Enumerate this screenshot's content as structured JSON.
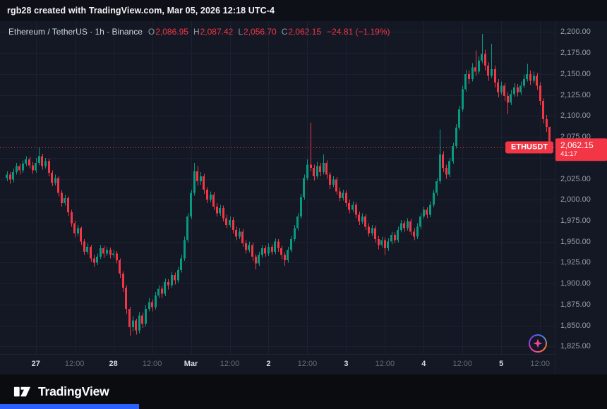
{
  "top_bar": {
    "text": "rgb28 created with TradingView.com, Mar 05, 2026 12:18 UTC-4"
  },
  "legend": {
    "symbol_title": "Ethereum / TetherUS · 1h · Binance",
    "ohlc": {
      "o_label": "O",
      "o": "2,086.95",
      "h_label": "H",
      "h": "2,087.42",
      "l_label": "L",
      "l": "2,056.70",
      "c_label": "C",
      "c": "2,062.15"
    },
    "change": "−24.81 (−1.19%)"
  },
  "price_line": {
    "symbol_tag": "ETHUSDT",
    "price_text": "2,062.15",
    "countdown": "41:17"
  },
  "price_axis": {
    "ticks": [
      {
        "p": 2200,
        "label": "2,200.00"
      },
      {
        "p": 2175,
        "label": "2,175.00"
      },
      {
        "p": 2150,
        "label": "2,150.00"
      },
      {
        "p": 2125,
        "label": "2,125.00"
      },
      {
        "p": 2100,
        "label": "2,100.00"
      },
      {
        "p": 2075,
        "label": "2,075.00"
      },
      {
        "p": 2050,
        "label": "2,050.00"
      },
      {
        "p": 2025,
        "label": "2,025.00"
      },
      {
        "p": 2000,
        "label": "2,000.00"
      },
      {
        "p": 1975,
        "label": "1,975.00"
      },
      {
        "p": 1950,
        "label": "1,950.00"
      },
      {
        "p": 1925,
        "label": "1,925.00"
      },
      {
        "p": 1900,
        "label": "1,900.00"
      },
      {
        "p": 1875,
        "label": "1,875.00"
      },
      {
        "p": 1850,
        "label": "1,850.00"
      },
      {
        "p": 1825,
        "label": "1,825.00"
      }
    ]
  },
  "footer": {
    "brand": "TradingView"
  },
  "colors": {
    "up": "#089981",
    "down": "#f23645",
    "grid": "#1c2130",
    "axis_text": "#9a9ea8",
    "accent_blue": "#2a62ff"
  },
  "chart_data": {
    "type": "candlestick",
    "title": "Ethereum / TetherUS · 1h · Binance",
    "symbol": "ETHUSDT",
    "timeframe": "1h",
    "exchange": "Binance",
    "last_price": 2062.15,
    "ylim": [
      1816,
      2213
    ],
    "up_color": "#089981",
    "down_color": "#f23645",
    "x_ticks": [
      {
        "i": 9,
        "label": "27",
        "major": true
      },
      {
        "i": 21,
        "label": "12:00",
        "major": false
      },
      {
        "i": 33,
        "label": "28",
        "major": true
      },
      {
        "i": 45,
        "label": "12:00",
        "major": false
      },
      {
        "i": 57,
        "label": "Mar",
        "major": true
      },
      {
        "i": 69,
        "label": "12:00",
        "major": false
      },
      {
        "i": 81,
        "label": "2",
        "major": true
      },
      {
        "i": 93,
        "label": "12:00",
        "major": false
      },
      {
        "i": 105,
        "label": "3",
        "major": true
      },
      {
        "i": 117,
        "label": "12:00",
        "major": false
      },
      {
        "i": 129,
        "label": "4",
        "major": true
      },
      {
        "i": 141,
        "label": "12:00",
        "major": false
      },
      {
        "i": 153,
        "label": "5",
        "major": true
      },
      {
        "i": 165,
        "label": "12:00",
        "major": false
      }
    ],
    "candles": [
      [
        2026,
        2034,
        2022,
        2030
      ],
      [
        2030,
        2033,
        2019,
        2024
      ],
      [
        2024,
        2037,
        2021,
        2033
      ],
      [
        2033,
        2044,
        2030,
        2040
      ],
      [
        2040,
        2043,
        2030,
        2035
      ],
      [
        2035,
        2047,
        2032,
        2043
      ],
      [
        2043,
        2052,
        2040,
        2048
      ],
      [
        2048,
        2051,
        2037,
        2041
      ],
      [
        2041,
        2045,
        2031,
        2035
      ],
      [
        2035,
        2050,
        2032,
        2044
      ],
      [
        2044,
        2062,
        2041,
        2052
      ],
      [
        2052,
        2055,
        2036,
        2040
      ],
      [
        2040,
        2050,
        2037,
        2046
      ],
      [
        2046,
        2049,
        2028,
        2032
      ],
      [
        2032,
        2035,
        2016,
        2020
      ],
      [
        2020,
        2030,
        2017,
        2026
      ],
      [
        2026,
        2028,
        2004,
        2008
      ],
      [
        2008,
        2011,
        1992,
        1996
      ],
      [
        1996,
        2006,
        1993,
        2002
      ],
      [
        2002,
        2004,
        1981,
        1985
      ],
      [
        1985,
        1988,
        1968,
        1972
      ],
      [
        1972,
        1975,
        1955,
        1960
      ],
      [
        1960,
        1970,
        1957,
        1966
      ],
      [
        1966,
        1968,
        1946,
        1950
      ],
      [
        1950,
        1953,
        1934,
        1938
      ],
      [
        1938,
        1948,
        1935,
        1944
      ],
      [
        1944,
        1946,
        1926,
        1930
      ],
      [
        1930,
        1934,
        1920,
        1925
      ],
      [
        1925,
        1936,
        1922,
        1932
      ],
      [
        1932,
        1946,
        1929,
        1942
      ],
      [
        1942,
        1945,
        1931,
        1936
      ],
      [
        1936,
        1944,
        1933,
        1940
      ],
      [
        1940,
        1943,
        1930,
        1934
      ],
      [
        1934,
        1940,
        1931,
        1936
      ],
      [
        1936,
        1939,
        1924,
        1928
      ],
      [
        1928,
        1930,
        1907,
        1912
      ],
      [
        1912,
        1915,
        1890,
        1895
      ],
      [
        1895,
        1898,
        1864,
        1870
      ],
      [
        1870,
        1872,
        1838,
        1848
      ],
      [
        1848,
        1861,
        1843,
        1856
      ],
      [
        1856,
        1858,
        1839,
        1844
      ],
      [
        1844,
        1866,
        1841,
        1862
      ],
      [
        1862,
        1865,
        1847,
        1852
      ],
      [
        1852,
        1874,
        1849,
        1870
      ],
      [
        1870,
        1883,
        1867,
        1878
      ],
      [
        1878,
        1881,
        1867,
        1872
      ],
      [
        1872,
        1890,
        1869,
        1886
      ],
      [
        1886,
        1898,
        1883,
        1894
      ],
      [
        1894,
        1897,
        1883,
        1888
      ],
      [
        1888,
        1906,
        1885,
        1902
      ],
      [
        1902,
        1905,
        1893,
        1898
      ],
      [
        1898,
        1914,
        1895,
        1910
      ],
      [
        1910,
        1913,
        1899,
        1904
      ],
      [
        1904,
        1920,
        1901,
        1916
      ],
      [
        1916,
        1934,
        1913,
        1930
      ],
      [
        1930,
        1956,
        1927,
        1952
      ],
      [
        1952,
        1984,
        1949,
        1980
      ],
      [
        1980,
        2012,
        1977,
        2008
      ],
      [
        2008,
        2044,
        2005,
        2034
      ],
      [
        2034,
        2040,
        2017,
        2022
      ],
      [
        2022,
        2033,
        2018,
        2028
      ],
      [
        2028,
        2031,
        2007,
        2012
      ],
      [
        2012,
        2015,
        1996,
        2000
      ],
      [
        2000,
        2010,
        1997,
        2006
      ],
      [
        2006,
        2009,
        1988,
        1992
      ],
      [
        1992,
        1996,
        1980,
        1984
      ],
      [
        1984,
        1994,
        1981,
        1990
      ],
      [
        1990,
        1993,
        1974,
        1978
      ],
      [
        1978,
        1982,
        1966,
        1970
      ],
      [
        1970,
        1980,
        1967,
        1976
      ],
      [
        1976,
        1979,
        1960,
        1964
      ],
      [
        1964,
        1968,
        1952,
        1956
      ],
      [
        1956,
        1966,
        1953,
        1962
      ],
      [
        1962,
        1965,
        1944,
        1948
      ],
      [
        1948,
        1952,
        1936,
        1940
      ],
      [
        1940,
        1950,
        1937,
        1946
      ],
      [
        1946,
        1949,
        1927,
        1932
      ],
      [
        1932,
        1935,
        1917,
        1924
      ],
      [
        1924,
        1938,
        1921,
        1934
      ],
      [
        1934,
        1946,
        1931,
        1942
      ],
      [
        1942,
        1945,
        1932,
        1936
      ],
      [
        1936,
        1948,
        1933,
        1944
      ],
      [
        1944,
        1947,
        1934,
        1938
      ],
      [
        1938,
        1954,
        1935,
        1950
      ],
      [
        1950,
        1953,
        1938,
        1942
      ],
      [
        1942,
        1945,
        1929,
        1934
      ],
      [
        1934,
        1937,
        1921,
        1928
      ],
      [
        1928,
        1944,
        1925,
        1940
      ],
      [
        1940,
        1957,
        1937,
        1953
      ],
      [
        1953,
        1970,
        1950,
        1966
      ],
      [
        1966,
        1984,
        1963,
        1980
      ],
      [
        1980,
        2007,
        1977,
        2003
      ],
      [
        2003,
        2030,
        2000,
        2026
      ],
      [
        2026,
        2048,
        2023,
        2042
      ],
      [
        2042,
        2092,
        2034,
        2038
      ],
      [
        2038,
        2042,
        2023,
        2028
      ],
      [
        2028,
        2045,
        2025,
        2040
      ],
      [
        2040,
        2044,
        2028,
        2033
      ],
      [
        2033,
        2054,
        2030,
        2044
      ],
      [
        2044,
        2047,
        2025,
        2030
      ],
      [
        2030,
        2033,
        2013,
        2018
      ],
      [
        2018,
        2028,
        2015,
        2024
      ],
      [
        2024,
        2027,
        2006,
        2010
      ],
      [
        2010,
        2014,
        1998,
        2002
      ],
      [
        2002,
        2012,
        1999,
        2008
      ],
      [
        2008,
        2011,
        1992,
        1996
      ],
      [
        1996,
        2000,
        1984,
        1988
      ],
      [
        1988,
        1998,
        1985,
        1994
      ],
      [
        1994,
        1997,
        1978,
        1982
      ],
      [
        1982,
        1986,
        1970,
        1974
      ],
      [
        1974,
        1984,
        1971,
        1980
      ],
      [
        1980,
        1983,
        1964,
        1968
      ],
      [
        1968,
        1972,
        1956,
        1960
      ],
      [
        1960,
        1970,
        1957,
        1966
      ],
      [
        1966,
        1969,
        1949,
        1953
      ],
      [
        1953,
        1957,
        1941,
        1946
      ],
      [
        1946,
        1956,
        1943,
        1952
      ],
      [
        1952,
        1955,
        1934,
        1942
      ],
      [
        1942,
        1954,
        1939,
        1950
      ],
      [
        1950,
        1962,
        1947,
        1958
      ],
      [
        1958,
        1961,
        1948,
        1952
      ],
      [
        1952,
        1968,
        1949,
        1964
      ],
      [
        1964,
        1976,
        1961,
        1972
      ],
      [
        1972,
        1975,
        1962,
        1966
      ],
      [
        1966,
        1978,
        1963,
        1974
      ],
      [
        1974,
        1977,
        1958,
        1962
      ],
      [
        1962,
        1966,
        1952,
        1956
      ],
      [
        1956,
        1972,
        1953,
        1968
      ],
      [
        1968,
        1984,
        1965,
        1980
      ],
      [
        1980,
        1992,
        1977,
        1988
      ],
      [
        1988,
        1991,
        1978,
        1982
      ],
      [
        1982,
        1998,
        1979,
        1994
      ],
      [
        1994,
        2012,
        1991,
        2008
      ],
      [
        2008,
        2026,
        2005,
        2022
      ],
      [
        2022,
        2084,
        2019,
        2054
      ],
      [
        2054,
        2058,
        2033,
        2038
      ],
      [
        2038,
        2042,
        2025,
        2030
      ],
      [
        2030,
        2050,
        2027,
        2046
      ],
      [
        2046,
        2068,
        2043,
        2064
      ],
      [
        2064,
        2090,
        2061,
        2086
      ],
      [
        2086,
        2112,
        2083,
        2108
      ],
      [
        2108,
        2136,
        2105,
        2132
      ],
      [
        2132,
        2155,
        2129,
        2150
      ],
      [
        2150,
        2154,
        2138,
        2144
      ],
      [
        2144,
        2163,
        2141,
        2158
      ],
      [
        2158,
        2178,
        2148,
        2153
      ],
      [
        2153,
        2171,
        2150,
        2166
      ],
      [
        2166,
        2198,
        2163,
        2174
      ],
      [
        2174,
        2179,
        2154,
        2160
      ],
      [
        2160,
        2164,
        2142,
        2148
      ],
      [
        2148,
        2186,
        2145,
        2156
      ],
      [
        2156,
        2160,
        2134,
        2140
      ],
      [
        2140,
        2144,
        2122,
        2128
      ],
      [
        2128,
        2141,
        2125,
        2136
      ],
      [
        2136,
        2139,
        2118,
        2124
      ],
      [
        2124,
        2128,
        2102,
        2116
      ],
      [
        2116,
        2131,
        2113,
        2126
      ],
      [
        2126,
        2139,
        2123,
        2134
      ],
      [
        2134,
        2138,
        2123,
        2128
      ],
      [
        2128,
        2141,
        2125,
        2136
      ],
      [
        2136,
        2149,
        2133,
        2144
      ],
      [
        2144,
        2162,
        2141,
        2150
      ],
      [
        2150,
        2154,
        2137,
        2142
      ],
      [
        2142,
        2153,
        2139,
        2148
      ],
      [
        2148,
        2151,
        2131,
        2136
      ],
      [
        2136,
        2140,
        2113,
        2118
      ],
      [
        2118,
        2121,
        2091,
        2096
      ],
      [
        2096,
        2101,
        2081,
        2087
      ],
      [
        2086.95,
        2087.42,
        2056.7,
        2062.15
      ]
    ]
  }
}
